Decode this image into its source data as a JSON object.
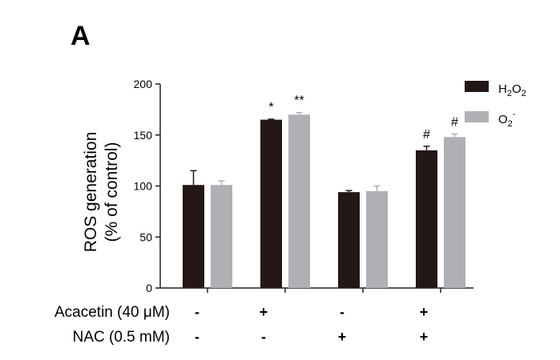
{
  "panel_label": "A",
  "chart_data": {
    "type": "bar",
    "ylabel_line1": "ROS generation",
    "ylabel_line2": "(% of control)",
    "ylim": [
      0,
      200
    ],
    "yticks": [
      0,
      50,
      100,
      150,
      200
    ],
    "groups": 4,
    "series": [
      {
        "name": "H2O2",
        "color": "#231815",
        "values": [
          101,
          165,
          94,
          135
        ],
        "errors": [
          14,
          0.5,
          1.5,
          4
        ],
        "annotations": [
          "",
          "*",
          "",
          "#"
        ]
      },
      {
        "name": "O2-",
        "color": "#aeb0b3",
        "values": [
          101,
          170,
          95,
          148
        ],
        "errors": [
          4,
          2,
          5,
          3
        ],
        "annotations": [
          "",
          "**",
          "",
          "#"
        ]
      }
    ],
    "treatments": [
      {
        "label": "Acacetin (40 μM)",
        "values": [
          "-",
          "+",
          "-",
          "+"
        ]
      },
      {
        "label": "NAC (0.5 mM)",
        "values": [
          "-",
          "-",
          "+",
          "+"
        ]
      }
    ],
    "legend_position": "top-right",
    "grid": false
  }
}
